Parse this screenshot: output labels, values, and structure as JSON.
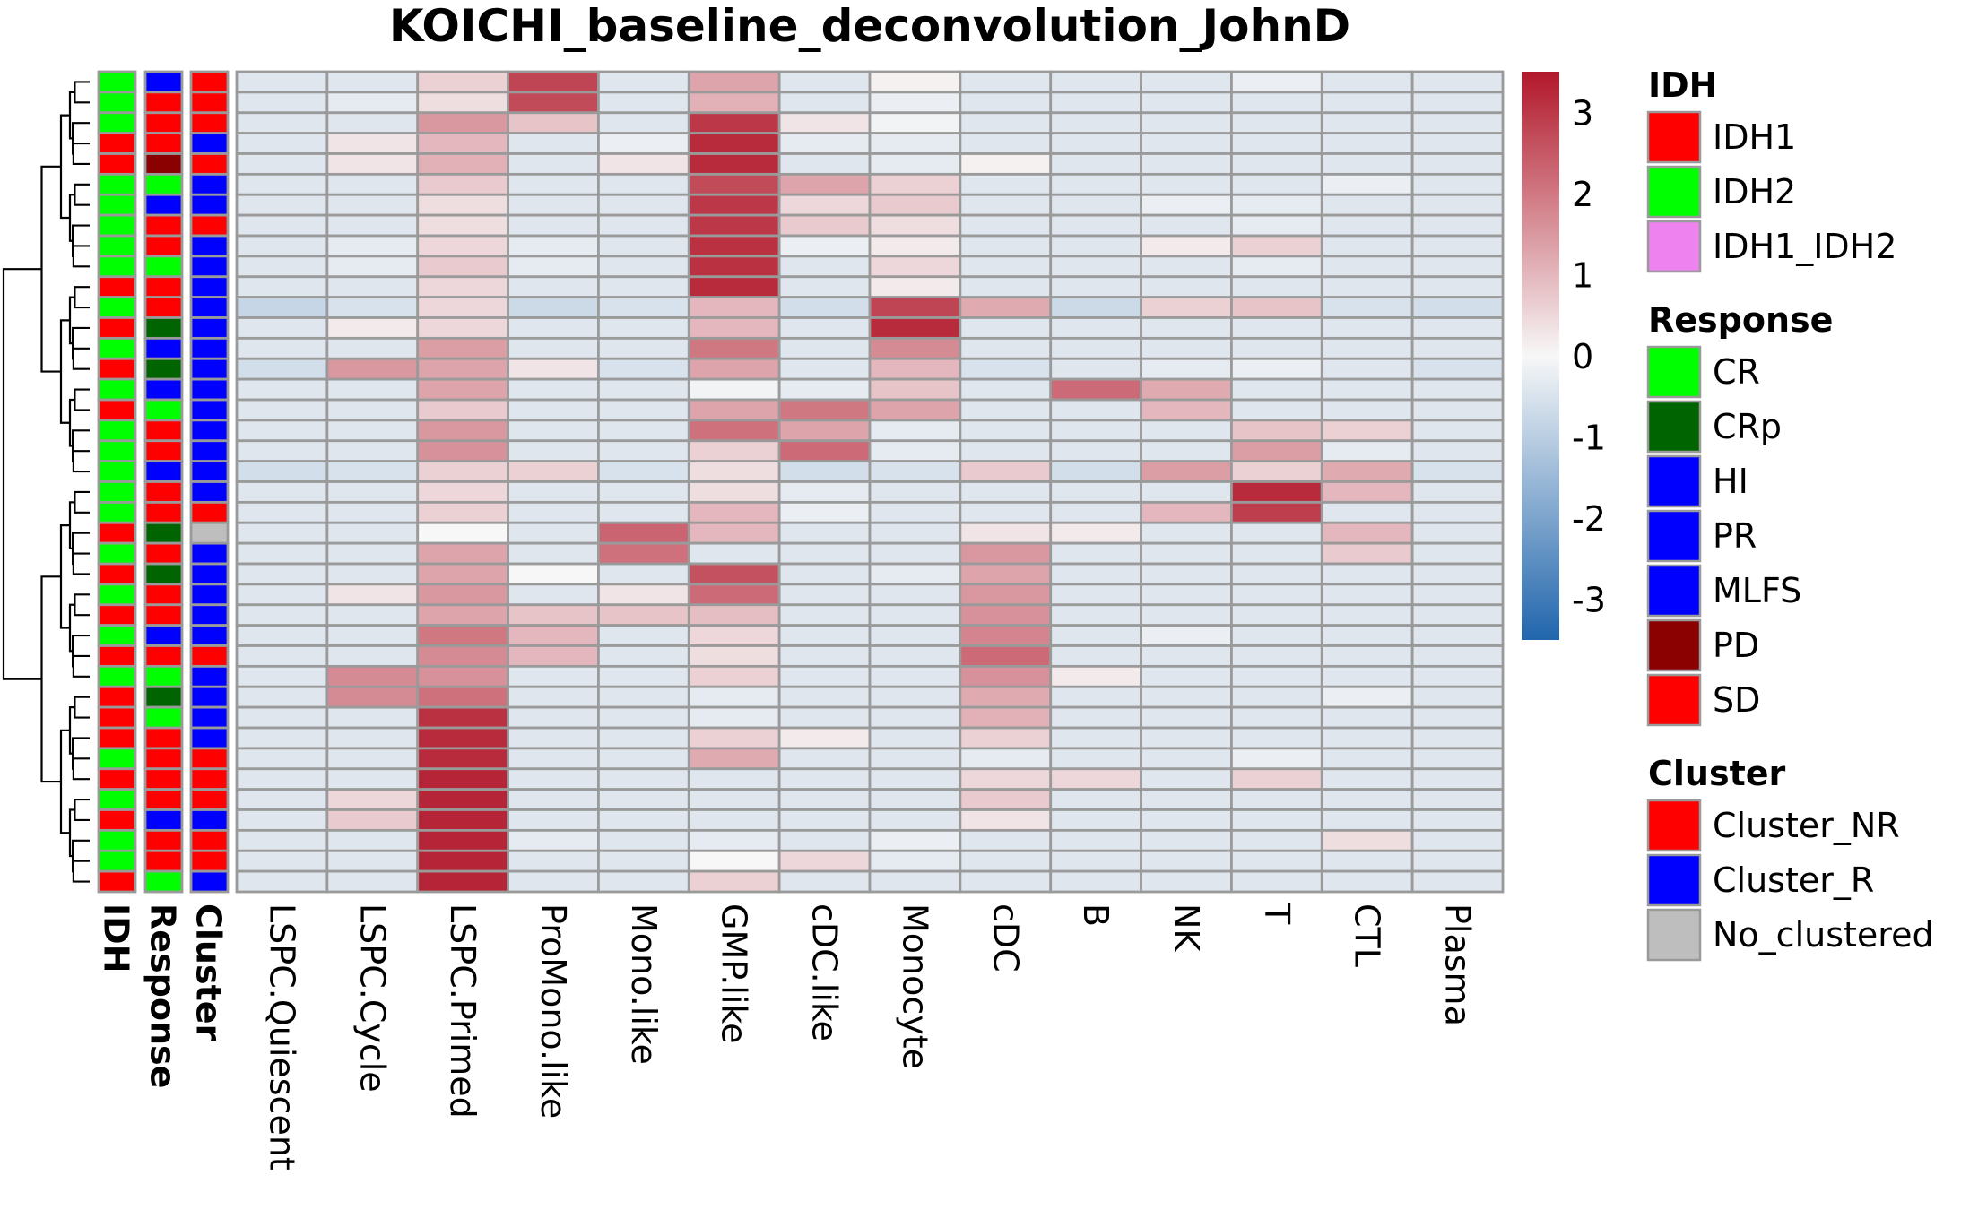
{
  "chart_data": {
    "type": "heatmap",
    "title": "KOICHI_baseline_deconvolution_JohnD",
    "columns": [
      "LSPC.Quiescent",
      "LSPC.Cycle",
      "LSPC.Primed",
      "ProMono.like",
      "Mono.like",
      "GMP.like",
      "cDC.like",
      "Monocyte",
      "cDC",
      "B",
      "NK",
      "T",
      "CTL",
      "Plasma"
    ],
    "color_scale": {
      "min": -3.5,
      "max": 3.5,
      "ticks": [
        "3",
        "2",
        "1",
        "0",
        "-1",
        "-2",
        "-3"
      ],
      "tick_values": [
        3,
        2,
        1,
        0,
        -1,
        -2,
        -3
      ],
      "low_color": "#2166ac",
      "mid_color": "#f7f7f7",
      "high_color": "#b2182b"
    },
    "row_annotation_labels": [
      "IDH",
      "Response",
      "Cluster"
    ],
    "rows": [
      {
        "IDH": "IDH2",
        "Response": "HI",
        "Cluster": "SD",
        "values": [
          -0.4,
          -0.4,
          0.6,
          2.8,
          -0.4,
          1.3,
          -0.4,
          0.1,
          -0.4,
          -0.4,
          -0.4,
          -0.2,
          -0.4,
          -0.4
        ]
      },
      {
        "IDH": "IDH2",
        "Response": "SD",
        "Cluster": "SD",
        "values": [
          -0.4,
          -0.3,
          0.4,
          2.7,
          -0.4,
          1.1,
          -0.4,
          -0.2,
          -0.4,
          -0.4,
          -0.4,
          -0.4,
          -0.4,
          -0.4
        ]
      },
      {
        "IDH": "IDH2",
        "Response": "SD",
        "Cluster": "SD",
        "values": [
          -0.4,
          -0.4,
          1.5,
          0.8,
          -0.4,
          3.0,
          0.3,
          -0.1,
          -0.4,
          -0.4,
          -0.4,
          -0.4,
          -0.4,
          -0.4
        ]
      },
      {
        "IDH": "SD",
        "Response": "SD",
        "Cluster": "HI",
        "values": [
          -0.4,
          0.3,
          1.0,
          -0.4,
          -0.2,
          3.2,
          -0.3,
          -0.3,
          -0.4,
          -0.4,
          -0.4,
          -0.4,
          -0.4,
          -0.4
        ]
      },
      {
        "IDH": "SD",
        "Response": "PD",
        "Cluster": "SD",
        "values": [
          -0.4,
          0.3,
          1.1,
          -0.4,
          0.3,
          3.2,
          -0.4,
          -0.3,
          0.1,
          -0.4,
          -0.4,
          -0.4,
          -0.4,
          -0.4
        ]
      },
      {
        "IDH": "IDH2",
        "Response": "CR",
        "Cluster": "HI",
        "values": [
          -0.4,
          -0.4,
          0.7,
          -0.4,
          -0.4,
          2.7,
          1.3,
          0.6,
          -0.4,
          -0.4,
          -0.4,
          -0.4,
          -0.2,
          -0.4
        ]
      },
      {
        "IDH": "IDH2",
        "Response": "HI",
        "Cluster": "HI",
        "values": [
          -0.4,
          -0.4,
          0.4,
          -0.4,
          -0.4,
          3.0,
          0.5,
          0.7,
          -0.4,
          -0.4,
          -0.2,
          -0.3,
          -0.4,
          -0.4
        ]
      },
      {
        "IDH": "IDH2",
        "Response": "SD",
        "Cluster": "SD",
        "values": [
          -0.4,
          -0.4,
          0.4,
          -0.4,
          -0.4,
          3.0,
          0.7,
          0.4,
          -0.4,
          -0.4,
          -0.4,
          -0.3,
          -0.4,
          -0.4
        ]
      },
      {
        "IDH": "IDH2",
        "Response": "SD",
        "Cluster": "HI",
        "values": [
          -0.4,
          -0.3,
          0.5,
          -0.3,
          -0.4,
          3.1,
          -0.2,
          0.2,
          -0.4,
          -0.4,
          0.2,
          0.6,
          -0.4,
          -0.4
        ]
      },
      {
        "IDH": "IDH2",
        "Response": "CR",
        "Cluster": "HI",
        "values": [
          -0.4,
          -0.3,
          0.7,
          -0.3,
          -0.4,
          3.1,
          -0.4,
          0.5,
          -0.4,
          -0.4,
          -0.4,
          -0.3,
          -0.4,
          -0.4
        ]
      },
      {
        "IDH": "SD",
        "Response": "SD",
        "Cluster": "HI",
        "values": [
          -0.4,
          -0.4,
          0.5,
          -0.4,
          -0.4,
          3.2,
          -0.4,
          0.2,
          -0.4,
          -0.4,
          -0.4,
          -0.4,
          -0.4,
          -0.4
        ]
      },
      {
        "IDH": "IDH2",
        "Response": "SD",
        "Cluster": "HI",
        "values": [
          -0.8,
          -0.5,
          0.5,
          -0.7,
          -0.5,
          1.0,
          -0.6,
          2.8,
          1.2,
          -0.7,
          0.6,
          0.8,
          -0.5,
          -0.6
        ]
      },
      {
        "IDH": "SD",
        "Response": "CRp",
        "Cluster": "HI",
        "values": [
          -0.4,
          0.2,
          0.5,
          -0.4,
          -0.4,
          1.0,
          -0.4,
          3.2,
          -0.4,
          -0.4,
          -0.4,
          -0.4,
          -0.4,
          -0.4
        ]
      },
      {
        "IDH": "IDH2",
        "Response": "HI",
        "Cluster": "HI",
        "values": [
          -0.4,
          -0.4,
          1.4,
          -0.4,
          -0.4,
          2.0,
          -0.4,
          1.7,
          -0.4,
          -0.4,
          -0.4,
          -0.4,
          -0.4,
          -0.4
        ]
      },
      {
        "IDH": "SD",
        "Response": "CRp",
        "Cluster": "HI",
        "values": [
          -0.6,
          1.5,
          1.3,
          0.3,
          -0.5,
          1.3,
          -0.4,
          1.0,
          -0.5,
          -0.4,
          -0.3,
          -0.2,
          -0.4,
          -0.5
        ]
      },
      {
        "IDH": "IDH2",
        "Response": "HI",
        "Cluster": "HI",
        "values": [
          -0.4,
          -0.4,
          1.3,
          -0.4,
          -0.4,
          -0.1,
          -0.3,
          0.8,
          -0.4,
          2.2,
          1.2,
          -0.4,
          -0.4,
          -0.4
        ]
      },
      {
        "IDH": "SD",
        "Response": "CR",
        "Cluster": "HI",
        "values": [
          -0.4,
          -0.4,
          0.7,
          -0.4,
          -0.4,
          1.3,
          2.0,
          1.3,
          -0.4,
          -0.4,
          1.0,
          -0.4,
          -0.4,
          -0.4
        ]
      },
      {
        "IDH": "IDH2",
        "Response": "SD",
        "Cluster": "HI",
        "values": [
          -0.4,
          -0.4,
          1.5,
          -0.4,
          -0.4,
          2.1,
          1.3,
          -0.3,
          -0.4,
          -0.4,
          -0.4,
          0.8,
          0.6,
          -0.4
        ]
      },
      {
        "IDH": "IDH2",
        "Response": "SD",
        "Cluster": "HI",
        "values": [
          -0.4,
          -0.4,
          1.6,
          -0.4,
          -0.4,
          0.6,
          2.2,
          -0.3,
          -0.4,
          -0.4,
          -0.4,
          1.4,
          -0.3,
          -0.4
        ]
      },
      {
        "IDH": "IDH2",
        "Response": "HI",
        "Cluster": "HI",
        "values": [
          -0.6,
          -0.5,
          0.6,
          0.6,
          -0.5,
          0.4,
          -0.6,
          -0.5,
          0.7,
          -0.6,
          1.4,
          0.6,
          1.2,
          -0.5
        ]
      },
      {
        "IDH": "IDH2",
        "Response": "SD",
        "Cluster": "HI",
        "values": [
          -0.4,
          -0.4,
          0.5,
          -0.4,
          -0.4,
          0.4,
          -0.3,
          -0.4,
          -0.4,
          -0.4,
          -0.4,
          3.2,
          1.0,
          -0.4
        ]
      },
      {
        "IDH": "IDH2",
        "Response": "SD",
        "Cluster": "SD",
        "values": [
          -0.4,
          -0.4,
          0.6,
          -0.4,
          -0.4,
          1.0,
          -0.2,
          -0.4,
          -0.4,
          -0.4,
          1.0,
          2.9,
          -0.4,
          -0.4
        ]
      },
      {
        "IDH": "SD",
        "Response": "CRp",
        "Cluster": "No_clustered",
        "values": [
          -0.4,
          -0.4,
          0.0,
          -0.4,
          2.3,
          1.0,
          -0.4,
          -0.4,
          0.3,
          0.2,
          -0.4,
          -0.4,
          1.0,
          -0.4
        ]
      },
      {
        "IDH": "IDH2",
        "Response": "SD",
        "Cluster": "HI",
        "values": [
          -0.4,
          -0.4,
          1.3,
          -0.4,
          2.1,
          -0.4,
          -0.4,
          -0.4,
          1.5,
          -0.4,
          -0.4,
          -0.4,
          0.7,
          -0.4
        ]
      },
      {
        "IDH": "SD",
        "Response": "CRp",
        "Cluster": "HI",
        "values": [
          -0.4,
          -0.4,
          1.3,
          0.0,
          -0.4,
          2.6,
          -0.4,
          -0.3,
          1.3,
          -0.4,
          -0.4,
          -0.4,
          -0.4,
          -0.4
        ]
      },
      {
        "IDH": "IDH2",
        "Response": "SD",
        "Cluster": "HI",
        "values": [
          -0.4,
          0.3,
          1.5,
          -0.4,
          0.3,
          2.2,
          -0.4,
          -0.4,
          1.5,
          -0.4,
          -0.4,
          -0.4,
          -0.4,
          -0.4
        ]
      },
      {
        "IDH": "SD",
        "Response": "SD",
        "Cluster": "HI",
        "values": [
          -0.4,
          -0.4,
          1.3,
          0.8,
          0.8,
          0.9,
          -0.4,
          -0.4,
          1.6,
          -0.4,
          -0.4,
          -0.4,
          -0.4,
          -0.4
        ]
      },
      {
        "IDH": "IDH2",
        "Response": "HI",
        "Cluster": "HI",
        "values": [
          -0.4,
          -0.4,
          2.0,
          1.0,
          -0.4,
          0.5,
          -0.4,
          -0.4,
          1.8,
          -0.4,
          -0.2,
          -0.4,
          -0.4,
          -0.4
        ]
      },
      {
        "IDH": "SD",
        "Response": "SD",
        "Cluster": "SD",
        "values": [
          -0.4,
          -0.4,
          1.7,
          1.0,
          -0.4,
          0.4,
          -0.4,
          -0.4,
          2.2,
          -0.4,
          -0.4,
          -0.4,
          -0.4,
          -0.4
        ]
      },
      {
        "IDH": "IDH2",
        "Response": "CR",
        "Cluster": "HI",
        "values": [
          -0.4,
          1.7,
          1.6,
          -0.4,
          -0.4,
          0.6,
          -0.4,
          -0.4,
          1.6,
          0.2,
          -0.4,
          -0.4,
          -0.4,
          -0.4
        ]
      },
      {
        "IDH": "SD",
        "Response": "CRp",
        "Cluster": "HI",
        "values": [
          -0.4,
          1.7,
          2.1,
          -0.4,
          -0.4,
          -0.3,
          -0.4,
          -0.4,
          1.2,
          -0.4,
          -0.4,
          -0.4,
          -0.2,
          -0.4
        ]
      },
      {
        "IDH": "SD",
        "Response": "CR",
        "Cluster": "HI",
        "values": [
          -0.4,
          -0.4,
          3.1,
          -0.4,
          -0.4,
          -0.3,
          -0.4,
          -0.4,
          1.1,
          -0.4,
          -0.4,
          -0.4,
          -0.4,
          -0.4
        ]
      },
      {
        "IDH": "SD",
        "Response": "SD",
        "Cluster": "HI",
        "values": [
          -0.4,
          -0.4,
          3.2,
          -0.4,
          -0.4,
          0.6,
          0.2,
          -0.4,
          0.6,
          -0.4,
          -0.4,
          -0.4,
          -0.4,
          -0.4
        ]
      },
      {
        "IDH": "IDH2",
        "Response": "SD",
        "Cluster": "SD",
        "values": [
          -0.4,
          -0.4,
          3.2,
          -0.4,
          -0.4,
          1.2,
          -0.4,
          -0.4,
          -0.3,
          -0.4,
          -0.4,
          -0.2,
          -0.4,
          -0.4
        ]
      },
      {
        "IDH": "SD",
        "Response": "SD",
        "Cluster": "SD",
        "values": [
          -0.4,
          -0.4,
          3.3,
          -0.4,
          -0.4,
          -0.4,
          -0.4,
          -0.4,
          0.5,
          0.5,
          -0.4,
          0.6,
          -0.4,
          -0.4
        ]
      },
      {
        "IDH": "IDH2",
        "Response": "SD",
        "Cluster": "SD",
        "values": [
          -0.4,
          0.5,
          3.3,
          -0.4,
          -0.4,
          -0.4,
          -0.4,
          -0.4,
          0.7,
          -0.4,
          -0.4,
          -0.4,
          -0.4,
          -0.4
        ]
      },
      {
        "IDH": "SD",
        "Response": "HI",
        "Cluster": "HI",
        "values": [
          -0.4,
          0.7,
          3.3,
          -0.4,
          -0.4,
          -0.4,
          -0.4,
          -0.4,
          0.3,
          -0.4,
          -0.4,
          -0.4,
          -0.4,
          -0.4
        ]
      },
      {
        "IDH": "IDH2",
        "Response": "SD",
        "Cluster": "SD",
        "values": [
          -0.4,
          -0.4,
          3.3,
          -0.3,
          -0.4,
          -0.3,
          -0.4,
          -0.2,
          -0.4,
          -0.4,
          -0.4,
          -0.4,
          0.4,
          -0.4
        ]
      },
      {
        "IDH": "IDH2",
        "Response": "SD",
        "Cluster": "SD",
        "values": [
          -0.4,
          -0.4,
          3.3,
          -0.4,
          -0.4,
          0.0,
          0.5,
          -0.3,
          -0.4,
          -0.4,
          -0.4,
          -0.4,
          -0.4,
          -0.4
        ]
      },
      {
        "IDH": "SD",
        "Response": "CR",
        "Cluster": "HI",
        "values": [
          -0.4,
          -0.4,
          3.3,
          -0.4,
          -0.4,
          0.6,
          -0.4,
          -0.4,
          -0.4,
          -0.4,
          -0.4,
          -0.4,
          -0.4,
          -0.4
        ]
      }
    ],
    "legends": [
      {
        "title": "IDH",
        "items": [
          {
            "label": "IDH1",
            "color": "#ff0000"
          },
          {
            "label": "IDH2",
            "color": "#00ff00"
          },
          {
            "label": "IDH1_IDH2",
            "color": "#ee82ee"
          }
        ]
      },
      {
        "title": "Response",
        "items": [
          {
            "label": "CR",
            "color": "#00ff00"
          },
          {
            "label": "CRp",
            "color": "#006400"
          },
          {
            "label": "HI",
            "color": "#0000ff"
          },
          {
            "label": "PR",
            "color": "#0000ff"
          },
          {
            "label": "MLFS",
            "color": "#0000ff"
          },
          {
            "label": "PD",
            "color": "#8b0000"
          },
          {
            "label": "SD",
            "color": "#ff0000"
          }
        ]
      },
      {
        "title": "Cluster",
        "items": [
          {
            "label": "Cluster_NR",
            "color": "#ff0000"
          },
          {
            "label": "Cluster_R",
            "color": "#0000ff"
          },
          {
            "label": "No_clustered",
            "color": "#bebebe"
          }
        ]
      }
    ],
    "annotation_colors": {
      "IDH2": "#00ff00",
      "SD": "#ff0000",
      "HI": "#0000ff",
      "PD": "#8b0000",
      "CR": "#00ff00",
      "CRp": "#006400",
      "No_clustered": "#bebebe"
    }
  }
}
